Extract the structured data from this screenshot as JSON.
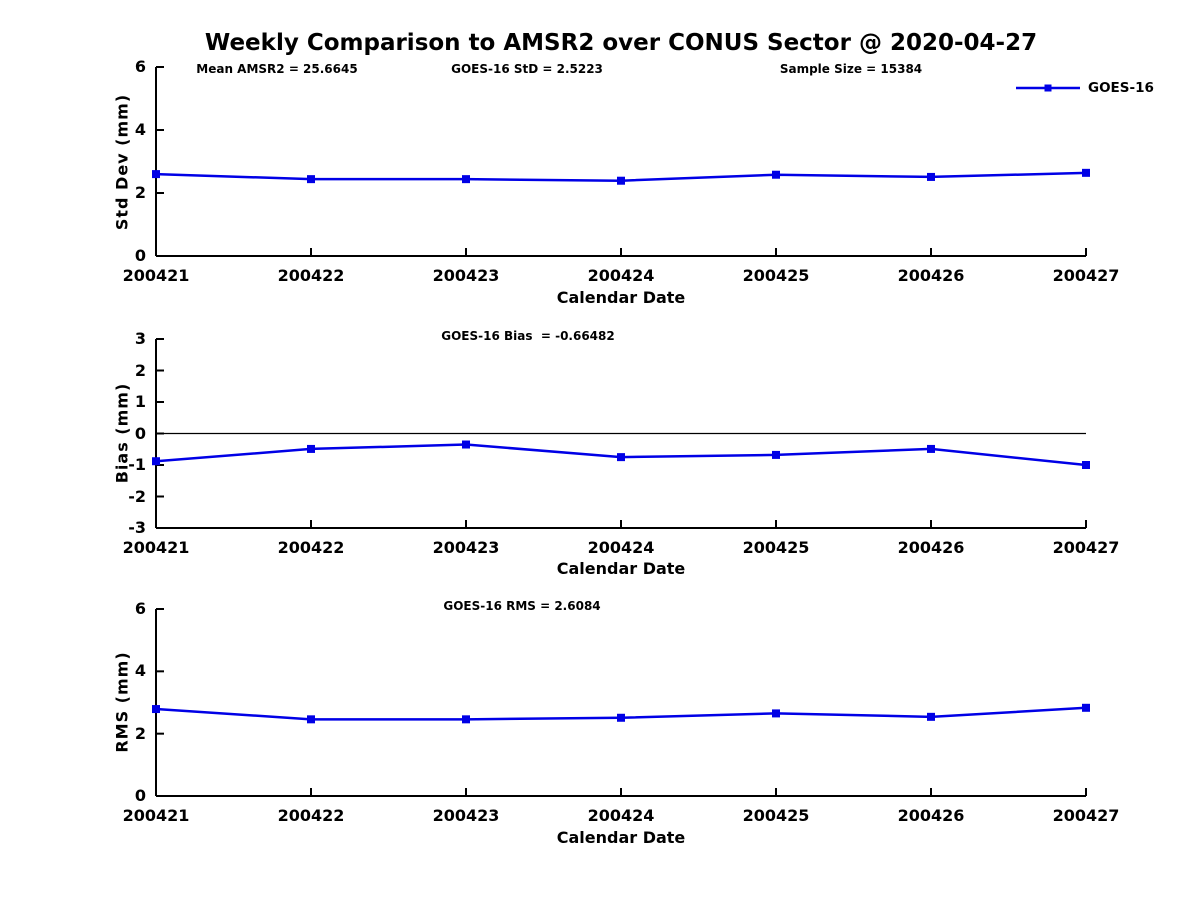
{
  "title": "Weekly Comparison to AMSR2 over CONUS Sector @ 2020-04-27",
  "legend": {
    "label": "GOES-16"
  },
  "colors": {
    "line": "#0000e6",
    "axis": "#000000"
  },
  "chart_data": [
    {
      "type": "line",
      "ylabel": "Std Dev (mm)",
      "xlabel": "Calendar Date",
      "categories": [
        "200421",
        "200422",
        "200423",
        "200424",
        "200425",
        "200426",
        "200427"
      ],
      "series": [
        {
          "name": "GOES-16",
          "values": [
            2.6,
            2.44,
            2.44,
            2.39,
            2.58,
            2.51,
            2.64
          ]
        }
      ],
      "ylim": [
        0,
        6
      ],
      "yticks": [
        0,
        2,
        4,
        6
      ],
      "grid": false,
      "zero_line": false,
      "annotations": [
        {
          "text": "Mean AMSR2 = 25.6645"
        },
        {
          "text": "GOES-16 StD = 2.5223"
        },
        {
          "text": "Sample Size = 15384"
        }
      ]
    },
    {
      "type": "line",
      "ylabel": "Bias (mm)",
      "xlabel": "Calendar Date",
      "categories": [
        "200421",
        "200422",
        "200423",
        "200424",
        "200425",
        "200426",
        "200427"
      ],
      "series": [
        {
          "name": "GOES-16",
          "values": [
            -0.88,
            -0.49,
            -0.35,
            -0.75,
            -0.68,
            -0.49,
            -1.0
          ]
        }
      ],
      "ylim": [
        -3,
        3
      ],
      "yticks": [
        -3,
        -2,
        -1,
        0,
        1,
        2,
        3
      ],
      "grid": false,
      "zero_line": true,
      "annotations": [
        {
          "text": "GOES-16 Bias  = -0.66482"
        }
      ]
    },
    {
      "type": "line",
      "ylabel": "RMS (mm)",
      "xlabel": "Calendar Date",
      "categories": [
        "200421",
        "200422",
        "200423",
        "200424",
        "200425",
        "200426",
        "200427"
      ],
      "series": [
        {
          "name": "GOES-16",
          "values": [
            2.79,
            2.46,
            2.46,
            2.51,
            2.65,
            2.54,
            2.83
          ]
        }
      ],
      "ylim": [
        0,
        6
      ],
      "yticks": [
        0,
        2,
        4,
        6
      ],
      "grid": false,
      "zero_line": false,
      "annotations": [
        {
          "text": "GOES-16 RMS = 2.6084"
        }
      ]
    }
  ]
}
